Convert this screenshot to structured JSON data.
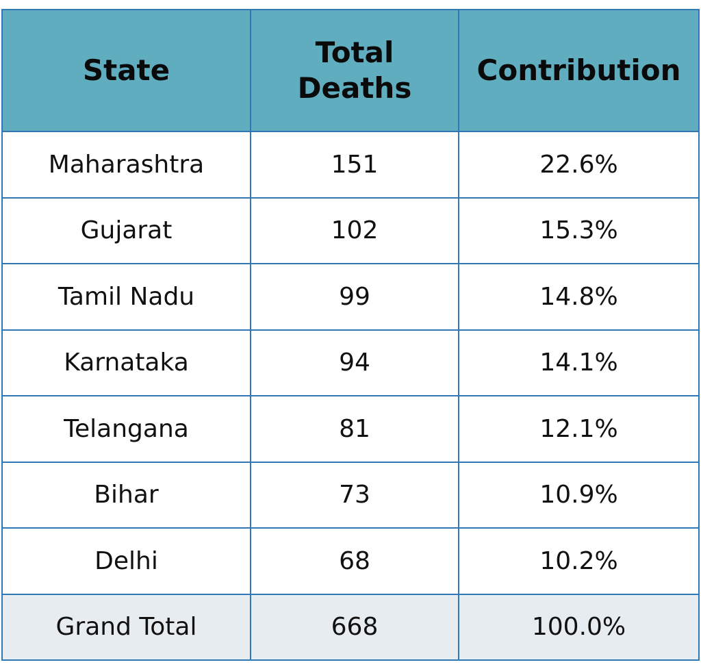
{
  "chart_data": {
    "type": "table",
    "columns": [
      "State",
      "Total Deaths",
      "Contribution"
    ],
    "rows": [
      {
        "state": "Maharashtra",
        "deaths": "151",
        "contribution": "22.6%"
      },
      {
        "state": "Gujarat",
        "deaths": "102",
        "contribution": "15.3%"
      },
      {
        "state": "Tamil Nadu",
        "deaths": "99",
        "contribution": "14.8%"
      },
      {
        "state": "Karnataka",
        "deaths": "94",
        "contribution": "14.1%"
      },
      {
        "state": "Telangana",
        "deaths": "81",
        "contribution": "12.1%"
      },
      {
        "state": "Bihar",
        "deaths": "73",
        "contribution": "10.9%"
      },
      {
        "state": "Delhi",
        "deaths": "68",
        "contribution": "10.2%"
      }
    ],
    "total": {
      "state": "Grand Total",
      "deaths": "668",
      "contribution": "100.0%"
    }
  },
  "colors": {
    "header_bg": "#5fadbf",
    "border": "#2f77b5",
    "total_row_bg": "#e6ecef"
  }
}
